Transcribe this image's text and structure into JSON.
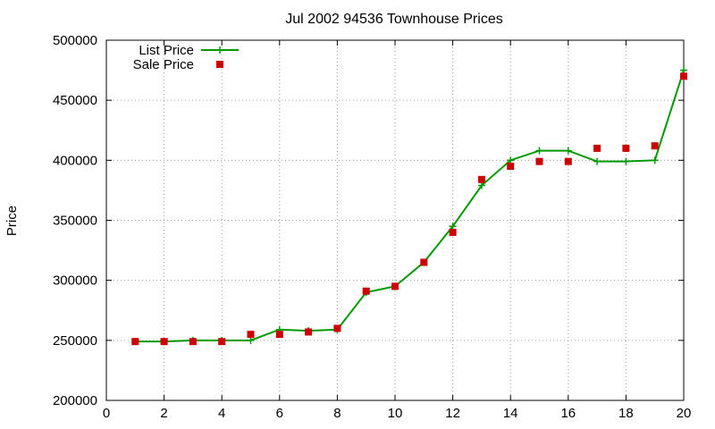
{
  "chart_data": {
    "type": "line",
    "title": "Jul 2002 94536 Townhouse Prices",
    "xlabel": "",
    "ylabel": "Price",
    "xlim": [
      0,
      20
    ],
    "ylim": [
      200000,
      500000
    ],
    "xticks": [
      0,
      2,
      4,
      6,
      8,
      10,
      12,
      14,
      16,
      18,
      20
    ],
    "yticks": [
      200000,
      250000,
      300000,
      350000,
      400000,
      450000,
      500000
    ],
    "grid": true,
    "legend_position": "top-left",
    "series": [
      {
        "name": "List Price",
        "style": "line+plus",
        "color": "#009900",
        "x": [
          1,
          2,
          3,
          4,
          5,
          6,
          7,
          8,
          9,
          10,
          11,
          12,
          13,
          14,
          15,
          16,
          17,
          18,
          19,
          20
        ],
        "y": [
          249000,
          249000,
          250000,
          250000,
          250000,
          259000,
          258000,
          259000,
          290000,
          295000,
          315000,
          345000,
          379000,
          400000,
          408000,
          408000,
          399000,
          399000,
          400000,
          475000
        ]
      },
      {
        "name": "Sale Price",
        "style": "square",
        "color": "#cc0000",
        "x": [
          1,
          2,
          3,
          4,
          5,
          6,
          7,
          8,
          9,
          10,
          11,
          12,
          13,
          14,
          15,
          16,
          17,
          18,
          19,
          20
        ],
        "y": [
          249000,
          249000,
          249000,
          249000,
          255000,
          255000,
          257000,
          260000,
          291000,
          295000,
          315000,
          340000,
          384000,
          395000,
          399000,
          399000,
          410000,
          410000,
          412000,
          470000
        ]
      }
    ]
  }
}
